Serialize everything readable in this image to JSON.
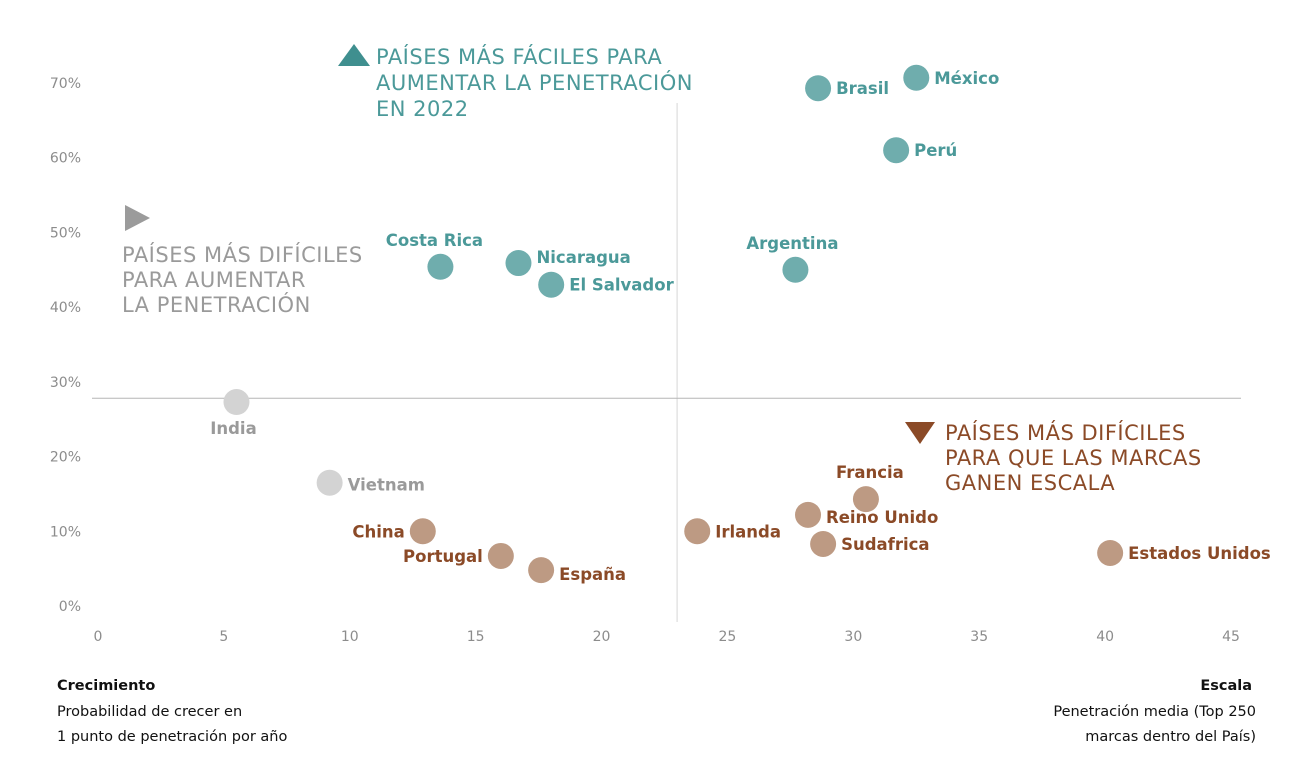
{
  "chart_data": {
    "type": "scatter",
    "xlim": [
      0,
      45
    ],
    "ylim": [
      0,
      70
    ],
    "x_ticks": [
      "0",
      "5",
      "10",
      "15",
      "20",
      "25",
      "30",
      "35",
      "40",
      "45"
    ],
    "y_ticks": [
      "0%",
      "10%",
      "20%",
      "30%",
      "40%",
      "50%",
      "60%",
      "70%"
    ],
    "grid": false,
    "quadrant_lines": {
      "x": 23,
      "y": 27.8
    },
    "colors": {
      "easy_dot": "#6fadad",
      "easy_text": "#4b9999",
      "easy_marker": "#3f8f8f",
      "growth_dot": "#d3d3d3",
      "growth_text": "#9a9a9a",
      "growth_marker": "#9b9b9b",
      "scale_dot": "#bd9a83",
      "scale_text": "#8b4a27",
      "scale_marker": "#8b4a27"
    },
    "annotations": {
      "easy": [
        "PAÍSES MÁS FÁCILES PARA",
        "AUMENTAR LA PENETRACIÓN",
        "EN 2022"
      ],
      "growth": [
        "PAÍSES MÁS DIFÍCILES",
        "PARA AUMENTAR",
        "LA PENETRACIÓN"
      ],
      "scale": [
        "PAÍSES MÁS DIFÍCILES",
        "PARA QUE LAS MARCAS",
        "GANEN ESCALA"
      ]
    },
    "points": [
      {
        "name": "Brasil",
        "x": 28.6,
        "y": 69.3,
        "group": "easy"
      },
      {
        "name": "México",
        "x": 32.5,
        "y": 70.7,
        "group": "easy"
      },
      {
        "name": "Perú",
        "x": 31.7,
        "y": 61.0,
        "group": "easy"
      },
      {
        "name": "Argentina",
        "x": 27.7,
        "y": 45.0,
        "group": "easy"
      },
      {
        "name": "Costa Rica",
        "x": 13.6,
        "y": 45.4,
        "group": "easy"
      },
      {
        "name": "Nicaragua",
        "x": 16.7,
        "y": 45.9,
        "group": "easy"
      },
      {
        "name": "El Salvador",
        "x": 18.0,
        "y": 43.0,
        "group": "easy"
      },
      {
        "name": "India",
        "x": 5.5,
        "y": 27.3,
        "group": "growth"
      },
      {
        "name": "Vietnam",
        "x": 9.2,
        "y": 16.5,
        "group": "growth"
      },
      {
        "name": "China",
        "x": 12.9,
        "y": 10.0,
        "group": "scale"
      },
      {
        "name": "Portugal",
        "x": 16.0,
        "y": 6.7,
        "group": "scale"
      },
      {
        "name": "España",
        "x": 17.6,
        "y": 4.8,
        "group": "scale"
      },
      {
        "name": "Irlanda",
        "x": 23.8,
        "y": 10.0,
        "group": "scale"
      },
      {
        "name": "Francia",
        "x": 30.5,
        "y": 14.3,
        "group": "scale"
      },
      {
        "name": "Reino Unido",
        "x": 28.2,
        "y": 12.2,
        "group": "scale"
      },
      {
        "name": "Sudafrica",
        "x": 28.8,
        "y": 8.3,
        "group": "scale"
      },
      {
        "name": "Estados Unidos",
        "x": 40.2,
        "y": 7.1,
        "group": "scale"
      }
    ]
  },
  "footer": {
    "left": {
      "title": "Crecimiento",
      "lines": [
        "Probabilidad de crecer en",
        "1 punto de penetración por año"
      ]
    },
    "right": {
      "title": "Escala",
      "lines": [
        "Penetración media (Top 250",
        "marcas dentro del País)"
      ]
    }
  }
}
